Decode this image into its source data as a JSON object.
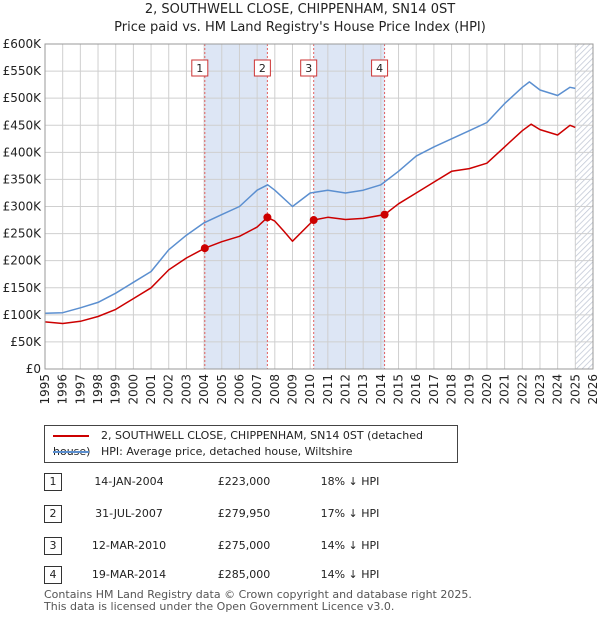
{
  "title_line1": "2, SOUTHWELL CLOSE, CHIPPENHAM, SN14 0ST",
  "title_line2": "Price paid vs. HM Land Registry's House Price Index (HPI)",
  "legend": {
    "property": "2, SOUTHWELL CLOSE, CHIPPENHAM, SN14 0ST (detached house)",
    "hpi": "HPI: Average price, detached house, Wiltshire"
  },
  "colors": {
    "property": "#cc0000",
    "hpi": "#5b8fd0",
    "shade": "#dde6f5",
    "hatch": "#bfc6d4",
    "grid": "#cfcfcf",
    "vline": "#e06060"
  },
  "chart_data": {
    "type": "line",
    "title": "2, SOUTHWELL CLOSE, CHIPPENHAM, SN14 0ST",
    "xlim": [
      1995,
      2026
    ],
    "ylim": [
      0,
      600000
    ],
    "y_ticks": [
      0,
      50000,
      100000,
      150000,
      200000,
      250000,
      300000,
      350000,
      400000,
      450000,
      500000,
      550000,
      600000
    ],
    "y_tick_labels": [
      "£0",
      "£50K",
      "£100K",
      "£150K",
      "£200K",
      "£250K",
      "£300K",
      "£350K",
      "£400K",
      "£450K",
      "£500K",
      "£550K",
      "£600K"
    ],
    "x_ticks": [
      1995,
      1996,
      1997,
      1998,
      1999,
      2000,
      2001,
      2002,
      2003,
      2004,
      2005,
      2006,
      2007,
      2008,
      2009,
      2010,
      2011,
      2012,
      2013,
      2014,
      2015,
      2016,
      2017,
      2018,
      2019,
      2020,
      2021,
      2022,
      2023,
      2024,
      2025,
      2026
    ],
    "shaded_periods": [
      [
        2004.04,
        2007.58
      ],
      [
        2010.2,
        2014.21
      ]
    ],
    "hatched_from": 2025.0,
    "series": [
      {
        "name": "2, SOUTHWELL CLOSE, CHIPPENHAM, SN14 0ST (detached house)",
        "points": [
          [
            1995,
            87000
          ],
          [
            1996,
            84000
          ],
          [
            1997,
            88000
          ],
          [
            1998,
            97000
          ],
          [
            1999,
            110000
          ],
          [
            2000,
            130000
          ],
          [
            2001,
            150000
          ],
          [
            2002,
            183000
          ],
          [
            2003,
            205000
          ],
          [
            2004.04,
            223000
          ],
          [
            2005,
            235000
          ],
          [
            2006,
            245000
          ],
          [
            2007,
            262000
          ],
          [
            2007.58,
            279950
          ],
          [
            2008,
            273000
          ],
          [
            2008.5,
            255000
          ],
          [
            2009,
            236000
          ],
          [
            2010.2,
            275000
          ],
          [
            2011,
            280000
          ],
          [
            2012,
            276000
          ],
          [
            2013,
            278000
          ],
          [
            2014.21,
            285000
          ],
          [
            2015,
            305000
          ],
          [
            2016,
            325000
          ],
          [
            2017,
            345000
          ],
          [
            2018,
            365000
          ],
          [
            2019,
            370000
          ],
          [
            2020,
            380000
          ],
          [
            2021,
            410000
          ],
          [
            2022,
            440000
          ],
          [
            2022.5,
            452000
          ],
          [
            2023,
            442000
          ],
          [
            2024,
            432000
          ],
          [
            2024.7,
            450000
          ],
          [
            2025,
            446000
          ]
        ]
      },
      {
        "name": "HPI: Average price, detached house, Wiltshire",
        "points": [
          [
            1995,
            103000
          ],
          [
            1996,
            104000
          ],
          [
            1997,
            113000
          ],
          [
            1998,
            123000
          ],
          [
            1999,
            140000
          ],
          [
            2000,
            160000
          ],
          [
            2001,
            180000
          ],
          [
            2002,
            220000
          ],
          [
            2003,
            247000
          ],
          [
            2004,
            270000
          ],
          [
            2005,
            285000
          ],
          [
            2006,
            300000
          ],
          [
            2007,
            330000
          ],
          [
            2007.6,
            340000
          ],
          [
            2008,
            330000
          ],
          [
            2009,
            300000
          ],
          [
            2010,
            325000
          ],
          [
            2011,
            330000
          ],
          [
            2012,
            325000
          ],
          [
            2013,
            330000
          ],
          [
            2014,
            340000
          ],
          [
            2015,
            365000
          ],
          [
            2016,
            393000
          ],
          [
            2017,
            410000
          ],
          [
            2018,
            425000
          ],
          [
            2019,
            440000
          ],
          [
            2020,
            455000
          ],
          [
            2021,
            490000
          ],
          [
            2022,
            520000
          ],
          [
            2022.4,
            530000
          ],
          [
            2023,
            515000
          ],
          [
            2024,
            505000
          ],
          [
            2024.7,
            520000
          ],
          [
            2025,
            518000
          ]
        ]
      }
    ],
    "sales": [
      {
        "id": "1",
        "x": 2004.04,
        "value": 223000
      },
      {
        "id": "2",
        "x": 2007.58,
        "value": 279950
      },
      {
        "id": "3",
        "x": 2010.2,
        "value": 275000
      },
      {
        "id": "4",
        "x": 2014.21,
        "value": 285000
      }
    ]
  },
  "transactions": [
    {
      "id": "1",
      "date": "14-JAN-2004",
      "price": "£223,000",
      "hpi": "18% ↓ HPI"
    },
    {
      "id": "2",
      "date": "31-JUL-2007",
      "price": "£279,950",
      "hpi": "17% ↓ HPI"
    },
    {
      "id": "3",
      "date": "12-MAR-2010",
      "price": "£275,000",
      "hpi": "14% ↓ HPI"
    },
    {
      "id": "4",
      "date": "19-MAR-2014",
      "price": "£285,000",
      "hpi": "14% ↓ HPI"
    }
  ],
  "footer_line1": "Contains HM Land Registry data © Crown copyright and database right 2025.",
  "footer_line2": "This data is licensed under the Open Government Licence v3.0."
}
